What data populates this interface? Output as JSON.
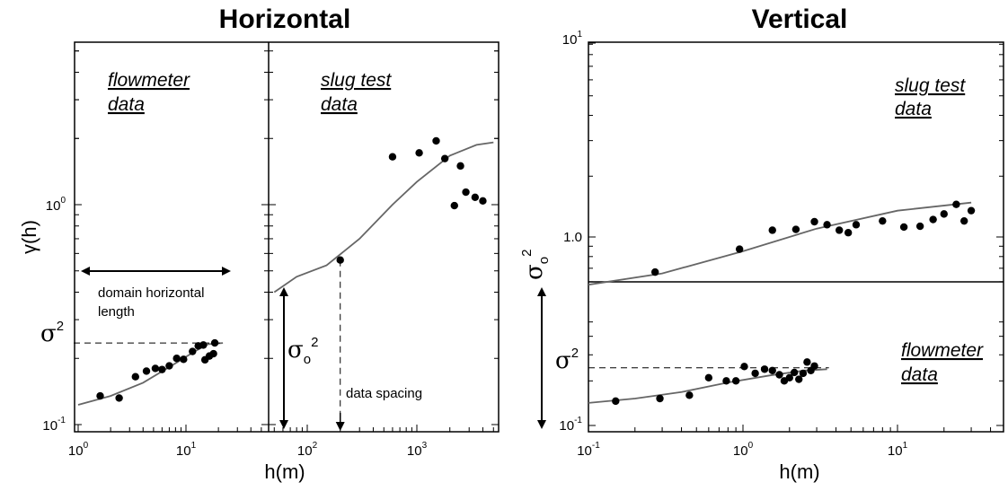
{
  "chart_data": [
    {
      "type": "scatter",
      "title": "Horizontal",
      "xlabel": "h(m)",
      "ylabel": "γ(h)",
      "x_scale": "log",
      "y_scale": "log",
      "y_tick_labels": [
        {
          "base": "10",
          "exp": "-1",
          "value": 0.1
        },
        {
          "base": "10",
          "exp": "0",
          "value": 1
        }
      ],
      "subpanels": [
        {
          "label_line1": "flowmeter",
          "label_line2": "data",
          "xlim": [
            1,
            25
          ],
          "x_tick_labels": [
            {
              "base": "10",
              "exp": "0",
              "value": 1
            },
            {
              "base": "10",
              "exp": "1",
              "value": 10
            }
          ],
          "points": [
            [
              1.6,
              0.135
            ],
            [
              2.4,
              0.132
            ],
            [
              3.4,
              0.165
            ],
            [
              4.3,
              0.175
            ],
            [
              5.2,
              0.18
            ],
            [
              6.0,
              0.178
            ],
            [
              7.0,
              0.185
            ],
            [
              8.2,
              0.2
            ],
            [
              9.5,
              0.198
            ],
            [
              11.5,
              0.215
            ],
            [
              13.0,
              0.228
            ],
            [
              14.5,
              0.23
            ],
            [
              15.0,
              0.197
            ],
            [
              16.5,
              0.205
            ],
            [
              18.0,
              0.21
            ],
            [
              18.5,
              0.235
            ]
          ],
          "fit_curve": [
            [
              1.0,
              0.123
            ],
            [
              2.0,
              0.135
            ],
            [
              4.0,
              0.155
            ],
            [
              8.0,
              0.19
            ],
            [
              12.0,
              0.215
            ],
            [
              16.0,
              0.232
            ],
            [
              22.0,
              0.235
            ]
          ],
          "sill_label": "σ",
          "sill_exp": "2",
          "sill_value": 0.235,
          "range_arrow_label_line1": "domain horizontal",
          "range_arrow_label_line2": "length"
        },
        {
          "label_line1": "slug test",
          "label_line2": "data",
          "xlim": [
            50,
            5000
          ],
          "x_tick_labels": [
            {
              "base": "10",
              "exp": "2",
              "value": 100
            },
            {
              "base": "10",
              "exp": "3",
              "value": 1000
            }
          ],
          "points": [
            [
              200,
              0.56
            ],
            [
              600,
              1.65
            ],
            [
              1050,
              1.72
            ],
            [
              1500,
              1.95
            ],
            [
              1800,
              1.62
            ],
            [
              2200,
              0.99
            ],
            [
              2500,
              1.5
            ],
            [
              2800,
              1.14
            ],
            [
              3400,
              1.08
            ],
            [
              4000,
              1.04
            ]
          ],
          "fit_curve": [
            [
              50,
              0.4
            ],
            [
              80,
              0.47
            ],
            [
              150,
              0.53
            ],
            [
              300,
              0.7
            ],
            [
              600,
              1.0
            ],
            [
              1000,
              1.27
            ],
            [
              2000,
              1.67
            ],
            [
              3500,
              1.87
            ],
            [
              5000,
              1.92
            ]
          ],
          "nugget_label": "σ",
          "nugget_sub": "o",
          "nugget_exp": "2",
          "spacing_label": "data spacing",
          "spacing_value": 200
        }
      ]
    },
    {
      "type": "scatter",
      "title": "Vertical",
      "xlabel": "h(m)",
      "x_scale": "log",
      "y_scale": "log",
      "xlim": [
        0.1,
        50
      ],
      "ylim": [
        0.1,
        10
      ],
      "x_tick_labels": [
        {
          "base": "10",
          "exp": "-1",
          "value": 0.1
        },
        {
          "base": "10",
          "exp": "0",
          "value": 1
        },
        {
          "base": "10",
          "exp": "1",
          "value": 10
        }
      ],
      "y_tick_labels": [
        {
          "base": "10",
          "exp": "-1",
          "value": 0.1
        },
        {
          "base": "10",
          "exp": "1",
          "value": 10
        }
      ],
      "mid_label": "1.0",
      "mid_value": 1.0,
      "lower_label_line1": "flowmeter",
      "lower_label_line2": "data",
      "upper_label_line1": "slug test",
      "upper_label_line2": "data",
      "sill_label": "σ",
      "sill_exp": "2",
      "sill_value": 0.245,
      "nugget_label": "σ",
      "nugget_sub": "o",
      "nugget_exp": "2",
      "lower_points": [
        [
          0.15,
          0.146
        ],
        [
          0.29,
          0.152
        ],
        [
          0.45,
          0.16
        ],
        [
          0.6,
          0.21
        ],
        [
          0.78,
          0.2
        ],
        [
          0.9,
          0.2
        ],
        [
          1.02,
          0.25
        ],
        [
          1.2,
          0.225
        ],
        [
          1.38,
          0.24
        ],
        [
          1.55,
          0.235
        ],
        [
          1.72,
          0.22
        ],
        [
          1.85,
          0.2
        ],
        [
          2.0,
          0.21
        ],
        [
          2.15,
          0.228
        ],
        [
          2.3,
          0.205
        ],
        [
          2.45,
          0.225
        ],
        [
          2.6,
          0.268
        ],
        [
          2.75,
          0.235
        ],
        [
          2.9,
          0.252
        ]
      ],
      "lower_curve": [
        [
          0.1,
          0.142
        ],
        [
          0.2,
          0.152
        ],
        [
          0.4,
          0.168
        ],
        [
          0.8,
          0.195
        ],
        [
          1.5,
          0.218
        ],
        [
          2.5,
          0.235
        ],
        [
          3.5,
          0.24
        ]
      ],
      "upper_points": [
        [
          0.27,
          0.67
        ],
        [
          0.95,
          0.87
        ],
        [
          1.55,
          1.08
        ],
        [
          2.2,
          1.09
        ],
        [
          2.9,
          1.19
        ],
        [
          3.5,
          1.15
        ],
        [
          4.2,
          1.08
        ],
        [
          4.8,
          1.05
        ],
        [
          5.4,
          1.15
        ],
        [
          8.0,
          1.2
        ],
        [
          11,
          1.12
        ],
        [
          14,
          1.13
        ],
        [
          17,
          1.22
        ],
        [
          20,
          1.3
        ],
        [
          24,
          1.45
        ],
        [
          27,
          1.2
        ],
        [
          30,
          1.35
        ]
      ],
      "upper_curve": [
        [
          0.1,
          0.58
        ],
        [
          0.3,
          0.66
        ],
        [
          1.0,
          0.85
        ],
        [
          3.0,
          1.1
        ],
        [
          10,
          1.35
        ],
        [
          30,
          1.48
        ]
      ]
    }
  ]
}
